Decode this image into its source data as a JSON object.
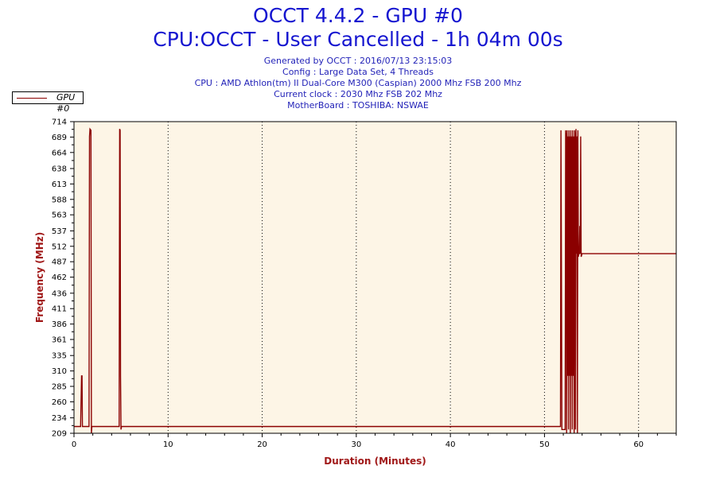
{
  "header": {
    "title_line1": "OCCT 4.4.2 - GPU #0",
    "title_line2": "CPU:OCCT - User Cancelled - 1h 04m 00s",
    "info": [
      "Generated by OCCT : 2016/07/13 23:15:03",
      "Config : Large Data Set, 4 Threads",
      "CPU : AMD Athlon(tm) II Dual-Core M300 (Caspian) 2000 Mhz FSB 200 Mhz",
      "Current clock : 2030 Mhz FSB 202 Mhz",
      "MotherBoard : TOSHIBA: NSWAE"
    ]
  },
  "colors": {
    "title": "#1515d0",
    "info": "#2323b8",
    "series": "#8b0000",
    "plot_background": "#fdf5e6",
    "axis_title": "#a01818"
  },
  "chart_data": {
    "type": "line",
    "xlabel": "Duration (Minutes)",
    "ylabel": "Frequency (MHz)",
    "xlim": [
      0,
      64
    ],
    "ylim": [
      209,
      714
    ],
    "x_ticks": [
      0,
      10,
      20,
      30,
      40,
      50,
      60
    ],
    "y_ticks": [
      209,
      234,
      260,
      285,
      310,
      335,
      361,
      386,
      411,
      436,
      462,
      487,
      512,
      537,
      563,
      588,
      613,
      638,
      664,
      689,
      714
    ],
    "grid": "vertical dotted",
    "legend_placement": "top-left",
    "series": [
      {
        "name": "GPU #0",
        "points": [
          [
            0,
            220
          ],
          [
            0.7,
            220
          ],
          [
            0.8,
            302
          ],
          [
            0.85,
            302
          ],
          [
            0.9,
            220
          ],
          [
            1.6,
            220
          ],
          [
            1.65,
            690
          ],
          [
            1.7,
            702
          ],
          [
            1.8,
            700
          ],
          [
            1.85,
            209
          ],
          [
            1.9,
            220
          ],
          [
            4.8,
            220
          ],
          [
            4.85,
            702
          ],
          [
            4.9,
            700
          ],
          [
            4.95,
            302
          ],
          [
            5.0,
            215
          ],
          [
            5.05,
            220
          ],
          [
            51.7,
            220
          ],
          [
            51.75,
            700
          ],
          [
            51.8,
            488
          ],
          [
            51.85,
            215
          ],
          [
            52.2,
            215
          ],
          [
            52.25,
            700
          ],
          [
            52.3,
            690
          ],
          [
            52.35,
            209
          ],
          [
            52.4,
            700
          ],
          [
            52.45,
            302
          ],
          [
            52.5,
            690
          ],
          [
            52.55,
            215
          ],
          [
            52.6,
            700
          ],
          [
            52.65,
            302
          ],
          [
            52.7,
            690
          ],
          [
            52.75,
            209
          ],
          [
            52.8,
            700
          ],
          [
            52.85,
            302
          ],
          [
            52.9,
            690
          ],
          [
            52.95,
            215
          ],
          [
            53.0,
            700
          ],
          [
            53.05,
            302
          ],
          [
            53.1,
            690
          ],
          [
            53.15,
            209
          ],
          [
            53.2,
            700
          ],
          [
            53.25,
            690
          ],
          [
            53.3,
            215
          ],
          [
            53.35,
            702
          ],
          [
            53.4,
            500
          ],
          [
            53.45,
            690
          ],
          [
            53.5,
            209
          ],
          [
            53.55,
            700
          ],
          [
            53.6,
            495
          ],
          [
            53.65,
            500
          ],
          [
            53.7,
            500
          ],
          [
            53.75,
            545
          ],
          [
            53.8,
            500
          ],
          [
            53.85,
            690
          ],
          [
            53.9,
            495
          ],
          [
            54.0,
            500
          ],
          [
            54.2,
            500
          ],
          [
            64,
            500
          ]
        ]
      }
    ]
  }
}
